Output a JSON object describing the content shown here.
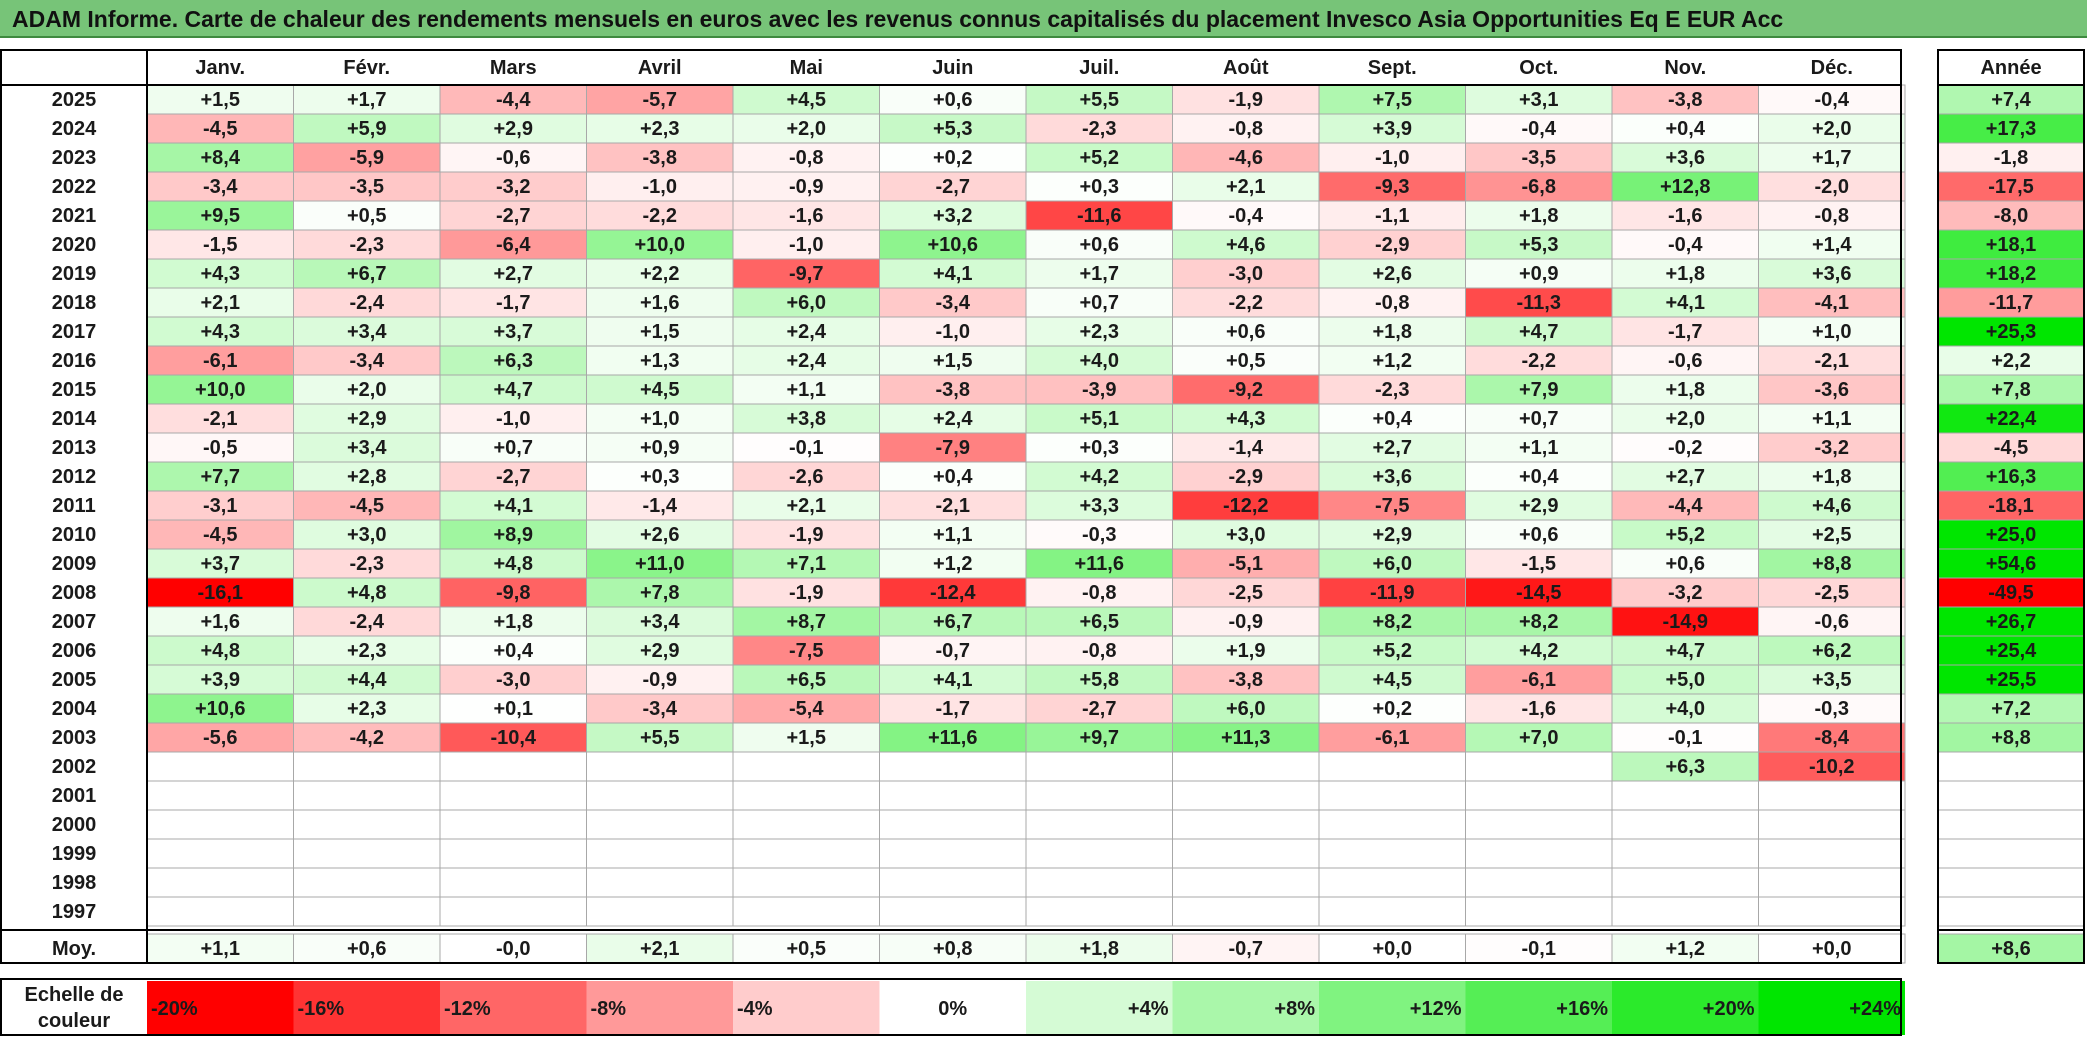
{
  "title": "ADAM Informe. Carte de chaleur des rendements mensuels en euros avec les revenus connus capitalisés du placement Invesco Asia Opportunities Eq E EUR Acc",
  "colors": {
    "title_background": "#77c478",
    "negative_max": "#ff0000",
    "neutral": "#ffffff",
    "positive_max": "#00e600"
  },
  "chart_data": {
    "type": "heatmap",
    "title": "ADAM Informe. Carte de chaleur des rendements mensuels en euros avec les revenus connus capitalisés du placement Invesco Asia Opportunities Eq E EUR Acc",
    "columns": [
      "Janv.",
      "Févr.",
      "Mars",
      "Avril",
      "Mai",
      "Juin",
      "Juil.",
      "Août",
      "Sept.",
      "Oct.",
      "Nov.",
      "Déc."
    ],
    "annual_header": "Année",
    "average_label": "Moy.",
    "rows": [
      {
        "year": "2025",
        "months": [
          "+1,5",
          "+1,7",
          "-4,4",
          "-5,7",
          "+4,5",
          "+0,6",
          "+5,5",
          "-1,9",
          "+7,5",
          "+3,1",
          "-3,8",
          "-0,4"
        ],
        "annual": "+7,4"
      },
      {
        "year": "2024",
        "months": [
          "-4,5",
          "+5,9",
          "+2,9",
          "+2,3",
          "+2,0",
          "+5,3",
          "-2,3",
          "-0,8",
          "+3,9",
          "-0,4",
          "+0,4",
          "+2,0"
        ],
        "annual": "+17,3"
      },
      {
        "year": "2023",
        "months": [
          "+8,4",
          "-5,9",
          "-0,6",
          "-3,8",
          "-0,8",
          "+0,2",
          "+5,2",
          "-4,6",
          "-1,0",
          "-3,5",
          "+3,6",
          "+1,7"
        ],
        "annual": "-1,8"
      },
      {
        "year": "2022",
        "months": [
          "-3,4",
          "-3,5",
          "-3,2",
          "-1,0",
          "-0,9",
          "-2,7",
          "+0,3",
          "+2,1",
          "-9,3",
          "-6,8",
          "+12,8",
          "-2,0"
        ],
        "annual": "-17,5"
      },
      {
        "year": "2021",
        "months": [
          "+9,5",
          "+0,5",
          "-2,7",
          "-2,2",
          "-1,6",
          "+3,2",
          "-11,6",
          "-0,4",
          "-1,1",
          "+1,8",
          "-1,6",
          "-0,8"
        ],
        "annual": "-8,0"
      },
      {
        "year": "2020",
        "months": [
          "-1,5",
          "-2,3",
          "-6,4",
          "+10,0",
          "-1,0",
          "+10,6",
          "+0,6",
          "+4,6",
          "-2,9",
          "+5,3",
          "-0,4",
          "+1,4"
        ],
        "annual": "+18,1"
      },
      {
        "year": "2019",
        "months": [
          "+4,3",
          "+6,7",
          "+2,7",
          "+2,2",
          "-9,7",
          "+4,1",
          "+1,7",
          "-3,0",
          "+2,6",
          "+0,9",
          "+1,8",
          "+3,6"
        ],
        "annual": "+18,2"
      },
      {
        "year": "2018",
        "months": [
          "+2,1",
          "-2,4",
          "-1,7",
          "+1,6",
          "+6,0",
          "-3,4",
          "+0,7",
          "-2,2",
          "-0,8",
          "-11,3",
          "+4,1",
          "-4,1"
        ],
        "annual": "-11,7"
      },
      {
        "year": "2017",
        "months": [
          "+4,3",
          "+3,4",
          "+3,7",
          "+1,5",
          "+2,4",
          "-1,0",
          "+2,3",
          "+0,6",
          "+1,8",
          "+4,7",
          "-1,7",
          "+1,0"
        ],
        "annual": "+25,3"
      },
      {
        "year": "2016",
        "months": [
          "-6,1",
          "-3,4",
          "+6,3",
          "+1,3",
          "+2,4",
          "+1,5",
          "+4,0",
          "+0,5",
          "+1,2",
          "-2,2",
          "-0,6",
          "-2,1"
        ],
        "annual": "+2,2"
      },
      {
        "year": "2015",
        "months": [
          "+10,0",
          "+2,0",
          "+4,7",
          "+4,5",
          "+1,1",
          "-3,8",
          "-3,9",
          "-9,2",
          "-2,3",
          "+7,9",
          "+1,8",
          "-3,6"
        ],
        "annual": "+7,8"
      },
      {
        "year": "2014",
        "months": [
          "-2,1",
          "+2,9",
          "-1,0",
          "+1,0",
          "+3,8",
          "+2,4",
          "+5,1",
          "+4,3",
          "+0,4",
          "+0,7",
          "+2,0",
          "+1,1"
        ],
        "annual": "+22,4"
      },
      {
        "year": "2013",
        "months": [
          "-0,5",
          "+3,4",
          "+0,7",
          "+0,9",
          "-0,1",
          "-7,9",
          "+0,3",
          "-1,4",
          "+2,7",
          "+1,1",
          "-0,2",
          "-3,2"
        ],
        "annual": "-4,5"
      },
      {
        "year": "2012",
        "months": [
          "+7,7",
          "+2,8",
          "-2,7",
          "+0,3",
          "-2,6",
          "+0,4",
          "+4,2",
          "-2,9",
          "+3,6",
          "+0,4",
          "+2,7",
          "+1,8"
        ],
        "annual": "+16,3"
      },
      {
        "year": "2011",
        "months": [
          "-3,1",
          "-4,5",
          "+4,1",
          "-1,4",
          "+2,1",
          "-2,1",
          "+3,3",
          "-12,2",
          "-7,5",
          "+2,9",
          "-4,4",
          "+4,6"
        ],
        "annual": "-18,1"
      },
      {
        "year": "2010",
        "months": [
          "-4,5",
          "+3,0",
          "+8,9",
          "+2,6",
          "-1,9",
          "+1,1",
          "-0,3",
          "+3,0",
          "+2,9",
          "+0,6",
          "+5,2",
          "+2,5"
        ],
        "annual": "+25,0"
      },
      {
        "year": "2009",
        "months": [
          "+3,7",
          "-2,3",
          "+4,8",
          "+11,0",
          "+7,1",
          "+1,2",
          "+11,6",
          "-5,1",
          "+6,0",
          "-1,5",
          "+0,6",
          "+8,8"
        ],
        "annual": "+54,6"
      },
      {
        "year": "2008",
        "months": [
          "-16,1",
          "+4,8",
          "-9,8",
          "+7,8",
          "-1,9",
          "-12,4",
          "-0,8",
          "-2,5",
          "-11,9",
          "-14,5",
          "-3,2",
          "-2,5"
        ],
        "annual": "-49,5"
      },
      {
        "year": "2007",
        "months": [
          "+1,6",
          "-2,4",
          "+1,8",
          "+3,4",
          "+8,7",
          "+6,7",
          "+6,5",
          "-0,9",
          "+8,2",
          "+8,2",
          "-14,9",
          "-0,6"
        ],
        "annual": "+26,7"
      },
      {
        "year": "2006",
        "months": [
          "+4,8",
          "+2,3",
          "+0,4",
          "+2,9",
          "-7,5",
          "-0,7",
          "-0,8",
          "+1,9",
          "+5,2",
          "+4,2",
          "+4,7",
          "+6,2"
        ],
        "annual": "+25,4"
      },
      {
        "year": "2005",
        "months": [
          "+3,9",
          "+4,4",
          "-3,0",
          "-0,9",
          "+6,5",
          "+4,1",
          "+5,8",
          "-3,8",
          "+4,5",
          "-6,1",
          "+5,0",
          "+3,5"
        ],
        "annual": "+25,5"
      },
      {
        "year": "2004",
        "months": [
          "+10,6",
          "+2,3",
          "+0,1",
          "-3,4",
          "-5,4",
          "-1,7",
          "-2,7",
          "+6,0",
          "+0,2",
          "-1,6",
          "+4,0",
          "-0,3"
        ],
        "annual": "+7,2"
      },
      {
        "year": "2003",
        "months": [
          "-5,6",
          "-4,2",
          "-10,4",
          "+5,5",
          "+1,5",
          "+11,6",
          "+9,7",
          "+11,3",
          "-6,1",
          "+7,0",
          "-0,1",
          "-8,4"
        ],
        "annual": "+8,8"
      },
      {
        "year": "2002",
        "months": [
          "",
          "",
          "",
          "",
          "",
          "",
          "",
          "",
          "",
          "",
          "+6,3",
          "-10,2"
        ],
        "annual": ""
      },
      {
        "year": "2001",
        "months": [
          "",
          "",
          "",
          "",
          "",
          "",
          "",
          "",
          "",
          "",
          "",
          ""
        ],
        "annual": ""
      },
      {
        "year": "2000",
        "months": [
          "",
          "",
          "",
          "",
          "",
          "",
          "",
          "",
          "",
          "",
          "",
          ""
        ],
        "annual": ""
      },
      {
        "year": "1999",
        "months": [
          "",
          "",
          "",
          "",
          "",
          "",
          "",
          "",
          "",
          "",
          "",
          ""
        ],
        "annual": ""
      },
      {
        "year": "1998",
        "months": [
          "",
          "",
          "",
          "",
          "",
          "",
          "",
          "",
          "",
          "",
          "",
          ""
        ],
        "annual": ""
      },
      {
        "year": "1997",
        "months": [
          "",
          "",
          "",
          "",
          "",
          "",
          "",
          "",
          "",
          "",
          "",
          ""
        ],
        "annual": ""
      }
    ],
    "average": {
      "months": [
        "+1,1",
        "+0,6",
        "-0,0",
        "+2,1",
        "+0,5",
        "+0,8",
        "+1,8",
        "-0,7",
        "+0,0",
        "-0,1",
        "+1,2",
        "+0,0"
      ],
      "annual": "+8,6"
    },
    "scale": {
      "label": "Echelle de couleur",
      "stops": [
        "-20%",
        "-16%",
        "-12%",
        "-8%",
        "-4%",
        "0%",
        "+4%",
        "+8%",
        "+12%",
        "+16%",
        "+20%",
        "+24%"
      ],
      "values": [
        -20,
        -16,
        -12,
        -8,
        -4,
        0,
        4,
        8,
        12,
        16,
        20,
        24
      ]
    }
  }
}
